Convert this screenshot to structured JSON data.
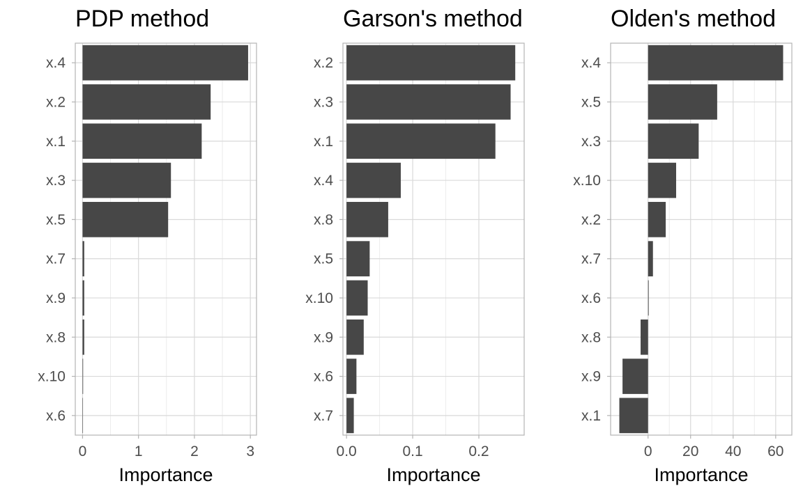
{
  "chart_data": [
    {
      "type": "bar",
      "orientation": "horizontal",
      "title": "PDP method",
      "xlabel": "Importance",
      "ylabel": "",
      "categories": [
        "x.4",
        "x.2",
        "x.1",
        "x.3",
        "x.5",
        "x.7",
        "x.9",
        "x.8",
        "x.10",
        "x.6"
      ],
      "values": [
        2.96,
        2.29,
        2.13,
        1.58,
        1.53,
        0.03,
        0.03,
        0.03,
        0.01,
        0.0
      ],
      "xlim": [
        -0.13,
        3.11
      ],
      "xticks": [
        0,
        1,
        2,
        3
      ],
      "xtick_labels": [
        "0",
        "1",
        "2",
        "3"
      ],
      "grid": true
    },
    {
      "type": "bar",
      "orientation": "horizontal",
      "title": "Garson's method",
      "xlabel": "Importance",
      "ylabel": "",
      "categories": [
        "x.2",
        "x.3",
        "x.1",
        "x.4",
        "x.8",
        "x.5",
        "x.10",
        "x.9",
        "x.6",
        "x.7"
      ],
      "values": [
        0.255,
        0.248,
        0.225,
        0.082,
        0.063,
        0.035,
        0.032,
        0.026,
        0.015,
        0.011
      ],
      "xlim": [
        -0.0054,
        0.2685
      ],
      "xticks": [
        0.0,
        0.1,
        0.2
      ],
      "xtick_labels": [
        "0.0",
        "0.1",
        "0.2"
      ],
      "grid": true
    },
    {
      "type": "bar",
      "orientation": "horizontal",
      "title": "Olden's method",
      "xlabel": "Importance",
      "ylabel": "",
      "categories": [
        "x.4",
        "x.5",
        "x.3",
        "x.10",
        "x.2",
        "x.7",
        "x.6",
        "x.8",
        "x.9",
        "x.1"
      ],
      "values": [
        63.5,
        32.5,
        23.8,
        13.2,
        8.3,
        2.3,
        0.3,
        -3.5,
        -12.0,
        -13.5
      ],
      "xlim": [
        -17.6,
        67.6
      ],
      "xticks": [
        0,
        20,
        40,
        60
      ],
      "xtick_labels": [
        "0",
        "20",
        "40",
        "60"
      ],
      "grid": true
    }
  ],
  "colors": {
    "bar": "#474747",
    "grid_major": "#d9d9d9",
    "grid_minor": "#ececec",
    "panel_border": "#b3b3b3",
    "tick_text": "#4d4d4d",
    "title_text": "#000000"
  }
}
